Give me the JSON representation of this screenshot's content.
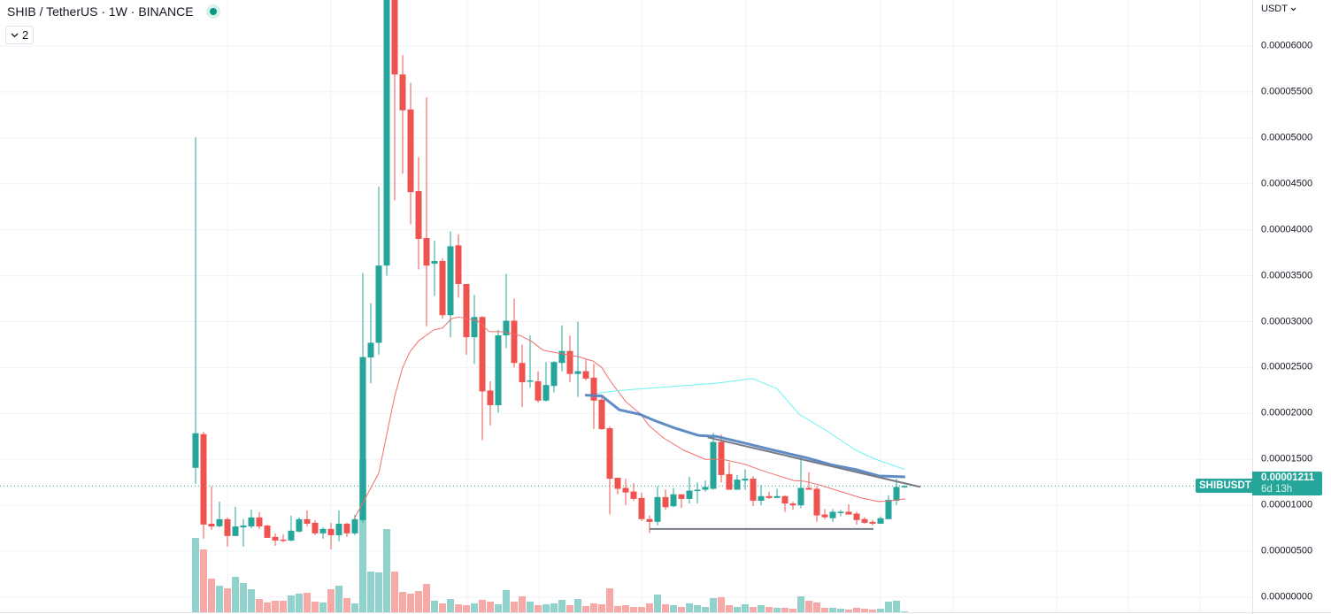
{
  "header": {
    "title": "SHIB / TetherUS · 1W · BINANCE",
    "status_icon": "market-open-dot",
    "indicators_toggle_label": "2"
  },
  "price_axis": {
    "currency_label": "USDT",
    "tick_labels": [
      "0.00000000",
      "0.00000500",
      "0.00001000",
      "0.00001500",
      "0.00002000",
      "0.00002500",
      "0.00003000",
      "0.00003500",
      "0.00004000",
      "0.00004500",
      "0.00005000",
      "0.00005500",
      "0.00006000"
    ]
  },
  "last_price": {
    "symbol": "SHIBUSDT",
    "value": "0.00001211",
    "countdown": "6d 13h"
  },
  "colors": {
    "up": "#26a69a",
    "down": "#ef5350",
    "up_volume": "#92d2cc",
    "down_volume": "#f7a9a7",
    "ma_red": "#f26d6d",
    "ma_cyan": "#6ff2f2",
    "trend_blue": "#4f7fc0",
    "trend_grey": "#787b86"
  },
  "chart_data": {
    "type": "candlestick",
    "symbol": "SHIB / TetherUS",
    "interval": "1W",
    "exchange": "BINANCE",
    "ylim": [
      0,
      6.51e-05
    ],
    "y_ticks": [
      0,
      5e-06,
      1e-05,
      1.5e-05,
      2e-05,
      2.5e-05,
      3e-05,
      3.5e-05,
      4e-05,
      4.5e-05,
      5e-05,
      5.5e-05,
      6e-05
    ],
    "grid": true,
    "ohlc_fields": [
      "open",
      "high",
      "low",
      "close"
    ],
    "candles": [
      [
        1.408e-05,
        5.007e-05,
        1.235e-05,
        1.785e-05
      ],
      [
        1.775e-05,
        1.8e-05,
        6.37e-06,
        7.91e-06
      ],
      [
        8e-06,
        1.206e-05,
        7.33e-06,
        7.7e-06
      ],
      [
        7.72e-06,
        1.04e-05,
        7.6e-06,
        8.49e-06
      ],
      [
        8.49e-06,
        8.68e-06,
        5.5e-06,
        6.66e-06
      ],
      [
        6.66e-06,
        9.84e-06,
        6.66e-06,
        7.7e-06
      ],
      [
        7.6e-06,
        8.5e-06,
        5.5e-06,
        7.8e-06
      ],
      [
        7.7e-06,
        9.55e-06,
        7.5e-06,
        8.68e-06
      ],
      [
        8.68e-06,
        9.26e-06,
        7.4e-06,
        7.7e-06
      ],
      [
        7.8e-06,
        7.9e-06,
        6.46e-06,
        6.46e-06
      ],
      [
        6.56e-06,
        6.95e-06,
        5.6e-06,
        6.17e-06
      ],
      [
        6.27e-06,
        6.85e-06,
        5.98e-06,
        6.17e-06
      ],
      [
        6.17e-06,
        8.87e-06,
        6.08e-06,
        7.24e-06
      ],
      [
        7.14e-06,
        8.68e-06,
        7.04e-06,
        8.49e-06
      ],
      [
        8.49e-06,
        9.45e-06,
        7.7e-06,
        8e-06
      ],
      [
        8.1e-06,
        8.4e-06,
        6.75e-06,
        6.95e-06
      ],
      [
        6.95e-06,
        7.6e-06,
        6.37e-06,
        7.43e-06
      ],
      [
        7.43e-06,
        8.1e-06,
        5.2e-06,
        6.75e-06
      ],
      [
        6.75e-06,
        9.45e-06,
        6.08e-06,
        8e-06
      ],
      [
        8e-06,
        8.1e-06,
        6.56e-06,
        6.95e-06
      ],
      [
        6.95e-06,
        8.97e-06,
        6.75e-06,
        8.49e-06
      ],
      [
        8.39e-06,
        3.53e-05,
        8.1e-06,
        2.614e-05
      ],
      [
        2.61e-05,
        3.2e-05,
        2.33e-05,
        2.77e-05
      ],
      [
        2.77e-05,
        4.47e-05,
        2.64e-05,
        3.61e-05
      ],
      [
        3.61e-05,
        7e-05,
        3.5e-05,
        6.8e-05
      ],
      [
        6.8e-05,
        7.1e-05,
        4.32e-05,
        5.69e-05
      ],
      [
        5.69e-05,
        5.9e-05,
        4.61e-05,
        5.3e-05
      ],
      [
        5.31e-05,
        5.6e-05,
        4.06e-05,
        4.41e-05
      ],
      [
        4.42e-05,
        4.79e-05,
        3.57e-05,
        3.9e-05
      ],
      [
        3.91e-05,
        5.44e-05,
        2.95e-05,
        3.61e-05
      ],
      [
        3.63e-05,
        3.88e-05,
        3.28e-05,
        3.66e-05
      ],
      [
        3.66e-05,
        3.69e-05,
        3.03e-05,
        3.07e-05
      ],
      [
        3.07e-05,
        3.98e-05,
        2.83e-05,
        3.82e-05
      ],
      [
        3.83e-05,
        3.95e-05,
        3.26e-05,
        3.41e-05
      ],
      [
        3.41e-05,
        3.41e-05,
        2.64e-05,
        2.83e-05
      ],
      [
        2.83e-05,
        3.29e-05,
        2.54e-05,
        3.05e-05
      ],
      [
        3.05e-05,
        3.06e-05,
        1.71e-05,
        2.24e-05
      ],
      [
        2.25e-05,
        2.35e-05,
        1.87e-05,
        2.09e-05
      ],
      [
        2.09e-05,
        2.91e-05,
        2.01e-05,
        2.85e-05
      ],
      [
        2.85e-05,
        3.52e-05,
        2.71e-05,
        3.01e-05
      ],
      [
        3.01e-05,
        3.25e-05,
        2.5e-05,
        2.55e-05
      ],
      [
        2.55e-05,
        2.75e-05,
        2.07e-05,
        2.34e-05
      ],
      [
        2.35e-05,
        2.85e-05,
        2.28e-05,
        2.36e-05
      ],
      [
        2.35e-05,
        2.46e-05,
        2.12e-05,
        2.14e-05
      ],
      [
        2.14e-05,
        2.56e-05,
        2.13e-05,
        2.31e-05
      ],
      [
        2.3e-05,
        2.57e-05,
        2.23e-05,
        2.56e-05
      ],
      [
        2.55e-05,
        2.96e-05,
        2.46e-05,
        2.68e-05
      ],
      [
        2.68e-05,
        2.85e-05,
        2.34e-05,
        2.43e-05
      ],
      [
        2.43e-05,
        3e-05,
        2.18e-05,
        2.46e-05
      ],
      [
        2.46e-05,
        2.59e-05,
        2.36e-05,
        2.38e-05
      ],
      [
        2.39e-05,
        2.54e-05,
        1.83e-05,
        2.14e-05
      ],
      [
        2.15e-05,
        2.19e-05,
        1.82e-05,
        1.83e-05
      ],
      [
        1.84e-05,
        1.86e-05,
        9e-06,
        1.29e-05
      ],
      [
        1.3e-05,
        1.3e-05,
        1.12e-05,
        1.18e-05
      ],
      [
        1.19e-05,
        1.29e-05,
        1e-05,
        1.14e-05
      ],
      [
        1.15e-05,
        1.24e-05,
        1.05e-05,
        1.07e-05
      ],
      [
        1.08e-05,
        1.14e-05,
        8.3e-06,
        8.5e-06
      ],
      [
        8.5e-06,
        8.9e-06,
        7e-06,
        8.2e-06
      ],
      [
        8.2e-06,
        1.21e-05,
        7.8e-06,
        1.09e-05
      ],
      [
        1.09e-05,
        1.17e-05,
        9.5e-06,
        9.8e-06
      ],
      [
        9.9e-06,
        1.19e-05,
        9.8e-06,
        1.12e-05
      ],
      [
        1.12e-05,
        1.12e-05,
        9.7e-06,
        1.07e-05
      ],
      [
        1.07e-05,
        1.31e-05,
        1.02e-05,
        1.16e-05
      ],
      [
        1.16e-05,
        1.25e-05,
        1.02e-05,
        1.17e-05
      ],
      [
        1.17e-05,
        1.27e-05,
        1.15e-05,
        1.2e-05
      ],
      [
        1.18e-05,
        1.79e-05,
        1.17e-05,
        1.69e-05
      ],
      [
        1.69e-05,
        1.77e-05,
        1.25e-05,
        1.33e-05
      ],
      [
        1.34e-05,
        1.47e-05,
        1.17e-05,
        1.17e-05
      ],
      [
        1.17e-05,
        1.33e-05,
        1.17e-05,
        1.28e-05
      ],
      [
        1.27e-05,
        1.39e-05,
        1.17e-05,
        1.29e-05
      ],
      [
        1.29e-05,
        1.32e-05,
        9.9e-06,
        1.05e-05
      ],
      [
        1.05e-05,
        1.22e-05,
        1e-05,
        1.1e-05
      ],
      [
        1.1e-05,
        1.15e-05,
        1.07e-05,
        1.08e-05
      ],
      [
        1.08e-05,
        1.18e-05,
        1.08e-05,
        1.1e-05
      ],
      [
        1.1e-05,
        1.11e-05,
        9.3e-06,
        1.02e-05
      ],
      [
        1.02e-05,
        1.04e-05,
        9.5e-06,
        1e-05
      ],
      [
        1e-05,
        1.52e-05,
        9.7e-06,
        1.19e-05
      ],
      [
        1.19e-05,
        1.36e-05,
        1.17e-05,
        1.17e-05
      ],
      [
        1.18e-05,
        1.21e-05,
        8.2e-06,
        8.9e-06
      ],
      [
        9e-06,
        9.6e-06,
        8.5e-06,
        8.7e-06
      ],
      [
        8.6e-06,
        9.6e-06,
        8.2e-06,
        9.3e-06
      ],
      [
        9.2e-06,
        9.5e-06,
        8.8e-06,
        9.3e-06
      ],
      [
        9.3e-06,
        1.01e-05,
        9e-06,
        9e-06
      ],
      [
        9.1e-06,
        9.3e-06,
        7.9e-06,
        8.4e-06
      ],
      [
        8.5e-06,
        8.7e-06,
        8e-06,
        8.1e-06
      ],
      [
        8.2e-06,
        8.4e-06,
        7.8e-06,
        8e-06
      ],
      [
        8e-06,
        8.8e-06,
        8e-06,
        8.6e-06
      ],
      [
        8.5e-06,
        1.11e-05,
        8.5e-06,
        1.06e-05
      ],
      [
        1.05e-05,
        1.29e-05,
        1e-05,
        1.2e-05
      ],
      [
        1.2e-05,
        1.22e-05,
        1.19e-05,
        1.211e-05
      ]
    ],
    "volume_relative": [
      252,
      213,
      114,
      90,
      81,
      120,
      99,
      78,
      45,
      33,
      39,
      39,
      57,
      63,
      66,
      36,
      33,
      78,
      90,
      48,
      30,
      519,
      138,
      135,
      282,
      138,
      69,
      63,
      72,
      96,
      39,
      30,
      45,
      27,
      24,
      30,
      42,
      36,
      27,
      75,
      36,
      54,
      36,
      24,
      27,
      30,
      42,
      24,
      45,
      21,
      30,
      27,
      81,
      21,
      24,
      18,
      18,
      30,
      60,
      27,
      24,
      18,
      30,
      24,
      18,
      48,
      51,
      24,
      18,
      27,
      18,
      24,
      18,
      15,
      15,
      12,
      54,
      39,
      33,
      15,
      15,
      12,
      9,
      15,
      12,
      9,
      12,
      36,
      39,
      3
    ],
    "lines": [
      {
        "style": "ma_red",
        "points": [
          [
            20.9,
            8.5e-06
          ],
          [
            24.0,
            1.35e-05
          ],
          [
            26.0,
            2.19e-05
          ],
          [
            27.0,
            2.5e-05
          ],
          [
            27.9,
            2.67e-05
          ],
          [
            29.0,
            2.79e-05
          ],
          [
            30.9,
            2.91e-05
          ],
          [
            32.0,
            2.93e-05
          ],
          [
            33.1,
            3.03e-05
          ],
          [
            34.0,
            3.05e-05
          ],
          [
            36.4,
            3.01e-05
          ],
          [
            37.9,
            2.89e-05
          ],
          [
            39.4,
            2.89e-05
          ],
          [
            41.7,
            2.85e-05
          ],
          [
            43.1,
            2.79e-05
          ],
          [
            44.6,
            2.69e-05
          ],
          [
            45.7,
            2.67e-05
          ],
          [
            49.0,
            2.62e-05
          ],
          [
            50.9,
            2.57e-05
          ],
          [
            52.0,
            2.5e-05
          ],
          [
            53.1,
            2.35e-05
          ],
          [
            55.0,
            2.13e-05
          ],
          [
            56.8,
            2e-05
          ],
          [
            57.9,
            1.87e-05
          ],
          [
            59.8,
            1.73e-05
          ],
          [
            62.3,
            1.6e-05
          ],
          [
            65.0,
            1.5e-05
          ],
          [
            67.2,
            1.5e-05
          ],
          [
            69.8,
            1.45e-05
          ],
          [
            72.8,
            1.36e-05
          ],
          [
            76.1,
            1.27e-05
          ],
          [
            77.6,
            1.26e-05
          ],
          [
            79.4,
            1.22e-05
          ],
          [
            82.0,
            1.15e-05
          ],
          [
            84.6,
            1.08e-05
          ],
          [
            86.8,
            1.04e-05
          ],
          [
            88.3,
            1.05e-05
          ],
          [
            90.1,
            1.07e-05
          ]
        ]
      },
      {
        "style": "ma_cyan",
        "points": [
          [
            51.4,
            2.22e-05
          ],
          [
            54.2,
            2.25e-05
          ],
          [
            66.4,
            2.33e-05
          ],
          [
            70.9,
            2.38e-05
          ],
          [
            74.0,
            2.27e-05
          ],
          [
            76.8,
            1.99e-05
          ],
          [
            80.1,
            1.82e-05
          ],
          [
            83.9,
            1.6e-05
          ],
          [
            86.4,
            1.5e-05
          ],
          [
            90.1,
            1.39e-05
          ]
        ]
      },
      {
        "style": "trend_blue",
        "points": [
          [
            49.9,
            2.2e-05
          ],
          [
            52.0,
            2.19e-05
          ],
          [
            54.2,
            2.04e-05
          ],
          [
            56.8,
            1.99e-05
          ],
          [
            58.7,
            1.92e-05
          ],
          [
            61.2,
            1.84e-05
          ],
          [
            64.2,
            1.76e-05
          ],
          [
            66.4,
            1.75e-05
          ],
          [
            69.8,
            1.68e-05
          ],
          [
            73.1,
            1.61e-05
          ],
          [
            77.6,
            1.52e-05
          ],
          [
            80.9,
            1.44e-05
          ],
          [
            83.9,
            1.39e-05
          ],
          [
            86.8,
            1.32e-05
          ],
          [
            90.1,
            1.31e-05
          ]
        ]
      },
      {
        "style": "trend_grey",
        "points": [
          [
            65.3,
            1.74e-05
          ],
          [
            92.0,
            1.2e-05
          ]
        ]
      },
      {
        "style": "trend_grey",
        "points": [
          [
            58.0,
            7.43e-06
          ],
          [
            86.1,
            7.43e-06
          ]
        ]
      }
    ],
    "last_price_line": 1.211e-05
  }
}
